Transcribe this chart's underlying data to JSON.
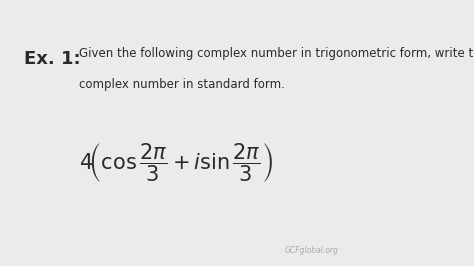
{
  "bg_color": "#ebebeb",
  "title_label": "Ex. 1:",
  "description_line1": "Given the following complex number in trigonometric form, write the",
  "description_line2": "complex number in standard form.",
  "formula_latex": "$4\\!\\left(\\cos\\dfrac{2\\pi}{3}+i\\sin\\dfrac{2\\pi}{3}\\right)$",
  "watermark": "GCFglobal.org",
  "text_color": "#2a2a2a",
  "watermark_color": "#aaaaaa",
  "title_fontsize": 13,
  "desc_fontsize": 8.5,
  "formula_fontsize": 15
}
